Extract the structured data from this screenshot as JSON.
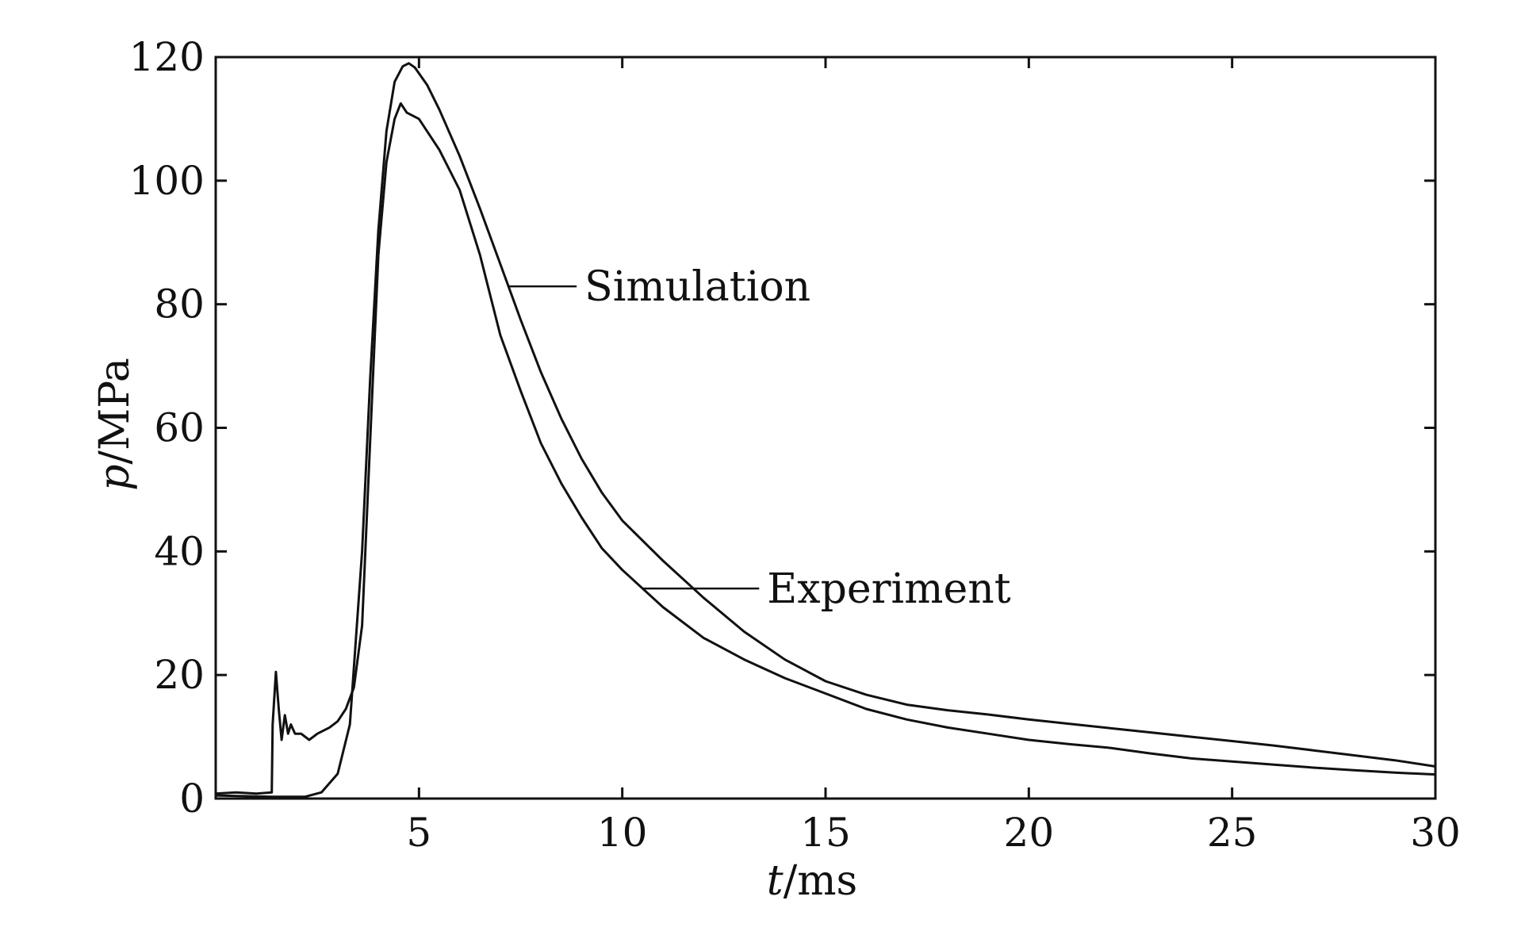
{
  "chart_data": {
    "type": "line",
    "xlabel": "t/ms",
    "xlabel_parts": {
      "var": "t",
      "unit": "/ms"
    },
    "ylabel": "p/MPa",
    "ylabel_parts": {
      "var": "p",
      "unit": "/MPa"
    },
    "xlim": [
      0,
      30
    ],
    "ylim": [
      0,
      120
    ],
    "xticks": [
      0,
      5,
      10,
      15,
      20,
      25,
      30
    ],
    "xtick_labels": [
      "5",
      "10",
      "15",
      "20",
      "25",
      "30"
    ],
    "yticks": [
      0,
      20,
      40,
      60,
      80,
      100,
      120
    ],
    "ytick_labels": [
      "0",
      "20",
      "40",
      "60",
      "80",
      "100",
      "120"
    ],
    "grid": false,
    "legend": "none",
    "colors": {
      "line": "#111111",
      "axes": "#111111",
      "background": "#ffffff"
    },
    "annotations": [
      {
        "text": "Simulation",
        "series": "Simulation",
        "x": 7.2,
        "y": 80
      },
      {
        "text": "Experiment",
        "series": "Experiment",
        "x": 10.5,
        "y": 36
      }
    ],
    "series": [
      {
        "name": "Simulation",
        "x": [
          0,
          1.4,
          2.2,
          2.6,
          3.0,
          3.3,
          3.6,
          3.8,
          4.0,
          4.2,
          4.4,
          4.6,
          4.75,
          4.9,
          5.2,
          5.5,
          6.0,
          6.5,
          7.0,
          7.5,
          8.0,
          8.5,
          9.0,
          9.5,
          10,
          11,
          12,
          13,
          14,
          15,
          16,
          17,
          18,
          19,
          20,
          21,
          22,
          23,
          24,
          25,
          26,
          27,
          28,
          29,
          30
        ],
        "y": [
          0.5,
          0.3,
          0.3,
          1.0,
          4.0,
          12.0,
          40.0,
          68.0,
          92.0,
          108.0,
          116.0,
          118.5,
          119.0,
          118.3,
          115.5,
          111.5,
          104.0,
          95.5,
          86.5,
          77.5,
          69.0,
          61.5,
          55.0,
          49.5,
          45.0,
          38.5,
          32.5,
          27.0,
          22.5,
          19.0,
          16.8,
          15.2,
          14.3,
          13.6,
          12.8,
          12.1,
          11.4,
          10.7,
          10.0,
          9.3,
          8.6,
          7.8,
          7.0,
          6.2,
          5.2
        ]
      },
      {
        "name": "Experiment",
        "x": [
          0,
          0.5,
          1.0,
          1.38,
          1.4,
          1.48,
          1.55,
          1.62,
          1.7,
          1.78,
          1.85,
          1.95,
          2.1,
          2.3,
          2.5,
          2.8,
          3.0,
          3.2,
          3.4,
          3.6,
          3.8,
          4.0,
          4.2,
          4.4,
          4.55,
          4.7,
          5.0,
          5.5,
          6.0,
          6.5,
          7.0,
          7.5,
          8.0,
          8.5,
          9.0,
          9.5,
          10,
          11,
          12,
          13,
          14,
          15,
          16,
          17,
          18,
          19,
          20,
          21,
          22,
          23,
          24,
          25,
          26,
          27,
          28,
          29,
          30
        ],
        "y": [
          0.8,
          1.0,
          0.8,
          1.0,
          12.0,
          20.5,
          14.5,
          9.5,
          13.5,
          10.5,
          12.0,
          10.5,
          10.5,
          9.5,
          10.5,
          11.5,
          12.5,
          14.5,
          18.0,
          28.0,
          58.0,
          88.0,
          103.0,
          110.0,
          112.5,
          111.0,
          110.0,
          105.0,
          98.5,
          88.0,
          75.0,
          66.0,
          57.5,
          51.0,
          45.5,
          40.5,
          37.0,
          31.0,
          26.0,
          22.5,
          19.5,
          17.0,
          14.5,
          12.8,
          11.5,
          10.5,
          9.5,
          8.8,
          8.2,
          7.3,
          6.5,
          6.0,
          5.5,
          5.0,
          4.6,
          4.2,
          3.9
        ]
      }
    ]
  }
}
